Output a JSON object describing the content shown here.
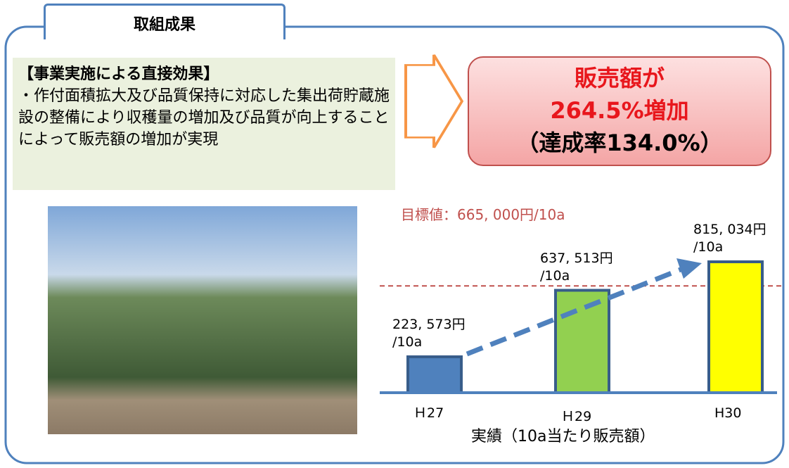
{
  "header": {
    "title": "取組成果"
  },
  "effect": {
    "heading": "【事業実施による直接効果】",
    "body": "・作付面積拡大及び品質保持に対応した集出荷貯蔵施設の整備により収穫量の増加及び品質が向上することによって販売額の増加が実現"
  },
  "result": {
    "lines": [
      "販売額が",
      "264.5%増加",
      "（達成率134.0%）"
    ]
  },
  "chart_data": {
    "type": "bar",
    "categories": [
      "Ｈ27",
      "Ｈ29",
      "H30"
    ],
    "values": [
      223573,
      637513,
      815034
    ],
    "value_labels": [
      "223, 573円\n/10a",
      "637, 513円\n/10a",
      "815, 034円\n/10a"
    ],
    "colors": [
      "#4f81bd",
      "#92d050",
      "#ffff00"
    ],
    "target": {
      "value": 665000,
      "label": "目標値：665, 000円/10a",
      "color": "#c0504d"
    },
    "x_label": "実績（10a当たり販売額）"
  }
}
